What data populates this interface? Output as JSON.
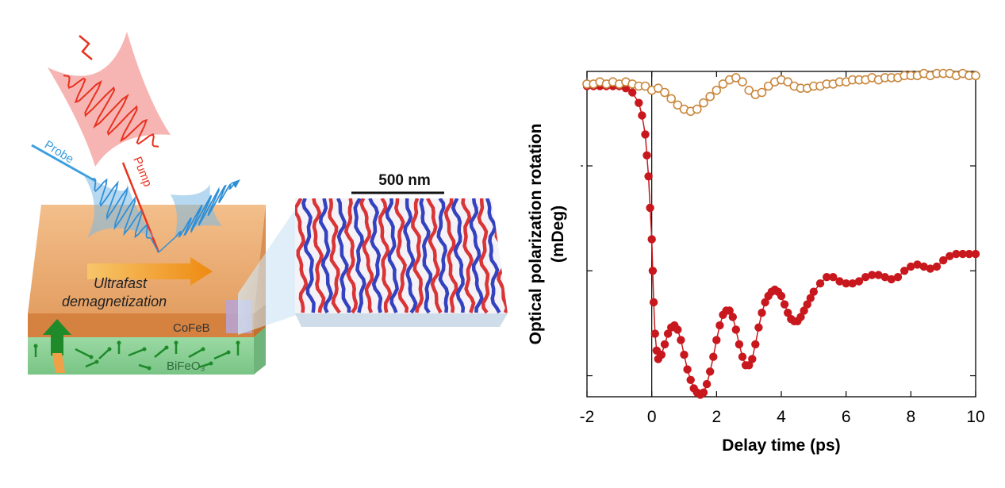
{
  "schematic": {
    "labels": {
      "pump": "Pump",
      "probe": "Probe",
      "process_line1": "Ultrafast",
      "process_line2": "demagnetization",
      "top_layer": "CoFeB",
      "bottom_layer": "BiFeO₃",
      "scale_bar": "500 nm"
    },
    "colors": {
      "pump": "#e8321f",
      "probe": "#3a9ee0",
      "cofeb": "#e6a670",
      "bifeo3": "#8fd19a",
      "domain_red": "#d62020",
      "domain_blue": "#1f2fb8",
      "arrows": "#1f8a2a",
      "process_arrow": "#f0971e"
    },
    "icons": [
      "pump-pulse-icon",
      "probe-pulse-icon",
      "domain-image",
      "magnetization-arrow-icon"
    ]
  },
  "chart_data": {
    "type": "scatter",
    "title": "",
    "xlabel": "Delay time (ps)",
    "ylabel_line1": "Optical polarization rotation",
    "ylabel_line2": "(mDeg)",
    "xlim": [
      -2,
      10
    ],
    "ylim": [
      -1.1,
      0.45
    ],
    "x_ticks": [
      -2,
      0,
      2,
      4,
      6,
      8,
      10
    ],
    "x_tick_labels": [
      "-2",
      "0",
      "2",
      "4",
      "6",
      "8",
      "10"
    ],
    "y_ticks": [
      -1.0,
      -0.5,
      0.0
    ],
    "y_tick_labels": [
      "",
      "",
      ""
    ],
    "vline_at": 0,
    "grid": false,
    "series": [
      {
        "name": "",
        "marker": "filled-circle",
        "color": "#c8181e",
        "x": [
          -2.0,
          -1.8,
          -1.6,
          -1.4,
          -1.2,
          -1.0,
          -0.8,
          -0.6,
          -0.4,
          -0.3,
          -0.2,
          -0.15,
          -0.1,
          -0.05,
          0.0,
          0.03,
          0.06,
          0.1,
          0.15,
          0.2,
          0.3,
          0.4,
          0.5,
          0.6,
          0.7,
          0.8,
          0.9,
          1.0,
          1.1,
          1.2,
          1.3,
          1.4,
          1.5,
          1.6,
          1.7,
          1.8,
          1.9,
          2.0,
          2.1,
          2.2,
          2.3,
          2.4,
          2.5,
          2.6,
          2.7,
          2.8,
          2.9,
          3.0,
          3.1,
          3.2,
          3.3,
          3.4,
          3.5,
          3.6,
          3.7,
          3.8,
          3.9,
          4.0,
          4.1,
          4.2,
          4.3,
          4.4,
          4.5,
          4.6,
          4.7,
          4.8,
          4.9,
          5.0,
          5.2,
          5.4,
          5.6,
          5.8,
          6.0,
          6.2,
          6.4,
          6.6,
          6.8,
          7.0,
          7.2,
          7.4,
          7.6,
          7.8,
          8.0,
          8.2,
          8.4,
          8.6,
          8.8,
          9.0,
          9.2,
          9.4,
          9.6,
          9.8,
          10.0
        ],
        "y": [
          0.38,
          0.38,
          0.38,
          0.38,
          0.38,
          0.38,
          0.37,
          0.35,
          0.3,
          0.24,
          0.15,
          0.05,
          -0.05,
          -0.2,
          -0.35,
          -0.5,
          -0.65,
          -0.8,
          -0.88,
          -0.92,
          -0.9,
          -0.85,
          -0.8,
          -0.77,
          -0.76,
          -0.78,
          -0.83,
          -0.9,
          -0.97,
          -1.02,
          -1.06,
          -1.08,
          -1.09,
          -1.08,
          -1.04,
          -0.98,
          -0.91,
          -0.83,
          -0.76,
          -0.71,
          -0.69,
          -0.69,
          -0.72,
          -0.78,
          -0.85,
          -0.91,
          -0.95,
          -0.95,
          -0.92,
          -0.85,
          -0.77,
          -0.7,
          -0.65,
          -0.62,
          -0.6,
          -0.59,
          -0.6,
          -0.62,
          -0.66,
          -0.7,
          -0.73,
          -0.74,
          -0.74,
          -0.72,
          -0.69,
          -0.66,
          -0.63,
          -0.6,
          -0.56,
          -0.53,
          -0.53,
          -0.55,
          -0.56,
          -0.56,
          -0.55,
          -0.53,
          -0.52,
          -0.52,
          -0.53,
          -0.54,
          -0.53,
          -0.5,
          -0.48,
          -0.47,
          -0.48,
          -0.49,
          -0.48,
          -0.45,
          -0.43,
          -0.42,
          -0.42,
          -0.42,
          -0.42
        ]
      },
      {
        "name": "",
        "marker": "open-circle",
        "color": "#c9873c",
        "x": [
          -2.0,
          -1.8,
          -1.6,
          -1.4,
          -1.2,
          -1.0,
          -0.8,
          -0.6,
          -0.4,
          -0.2,
          0.0,
          0.2,
          0.4,
          0.6,
          0.8,
          1.0,
          1.2,
          1.4,
          1.6,
          1.8,
          2.0,
          2.2,
          2.4,
          2.6,
          2.8,
          3.0,
          3.2,
          3.4,
          3.6,
          3.8,
          4.0,
          4.2,
          4.4,
          4.6,
          4.8,
          5.0,
          5.2,
          5.4,
          5.6,
          5.8,
          6.0,
          6.2,
          6.4,
          6.6,
          6.8,
          7.0,
          7.2,
          7.4,
          7.6,
          7.8,
          8.0,
          8.2,
          8.4,
          8.6,
          8.8,
          9.0,
          9.2,
          9.4,
          9.6,
          9.8,
          10.0
        ],
        "y": [
          0.39,
          0.39,
          0.4,
          0.39,
          0.4,
          0.39,
          0.4,
          0.39,
          0.38,
          0.38,
          0.36,
          0.37,
          0.35,
          0.32,
          0.29,
          0.27,
          0.26,
          0.27,
          0.3,
          0.33,
          0.36,
          0.39,
          0.41,
          0.42,
          0.4,
          0.36,
          0.34,
          0.35,
          0.38,
          0.4,
          0.41,
          0.4,
          0.38,
          0.37,
          0.37,
          0.38,
          0.38,
          0.39,
          0.39,
          0.4,
          0.4,
          0.41,
          0.41,
          0.41,
          0.42,
          0.41,
          0.42,
          0.42,
          0.42,
          0.43,
          0.43,
          0.43,
          0.44,
          0.43,
          0.44,
          0.44,
          0.44,
          0.43,
          0.44,
          0.43,
          0.43
        ]
      }
    ]
  }
}
